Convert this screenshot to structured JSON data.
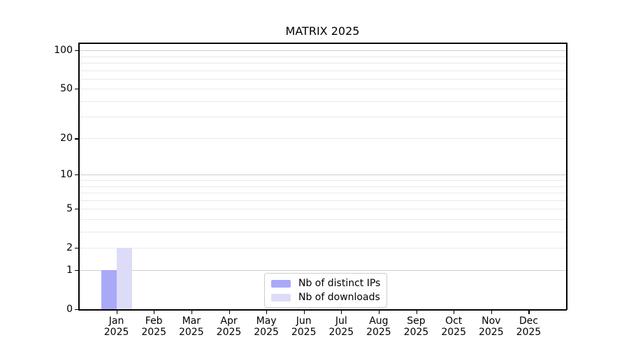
{
  "chart_data": {
    "type": "bar",
    "title": "MATRIX 2025",
    "categories": [
      "Jan 2025",
      "Feb 2025",
      "Mar 2025",
      "Apr 2025",
      "May 2025",
      "Jun 2025",
      "Jul 2025",
      "Aug 2025",
      "Sep 2025",
      "Oct 2025",
      "Nov 2025",
      "Dec 2025"
    ],
    "series": [
      {
        "name": "Nb of distinct IPs",
        "color": "#a9a9f8",
        "values": [
          1,
          0,
          0,
          0,
          0,
          0,
          0,
          0,
          0,
          0,
          0,
          0
        ]
      },
      {
        "name": "Nb of downloads",
        "color": "#dddcf8",
        "values": [
          2,
          0,
          0,
          0,
          0,
          0,
          0,
          0,
          0,
          0,
          0,
          0
        ]
      }
    ],
    "xlabel": "",
    "ylabel": "",
    "y_scale": "log10(1+x)",
    "ylim": [
      0,
      114
    ],
    "y_tick_labels": [
      0,
      1,
      2,
      5,
      10,
      20,
      50,
      100
    ],
    "gridlines": {
      "major": [
        1,
        10,
        100
      ],
      "minor": [
        2,
        3,
        4,
        5,
        6,
        7,
        8,
        9,
        20,
        30,
        40,
        50,
        60,
        70,
        80,
        90
      ]
    },
    "legend": {
      "position": "lower center",
      "entries": [
        "Nb of distinct IPs",
        "Nb of downloads"
      ]
    },
    "colors": {
      "grid_major": "#cdcdcd",
      "grid_minor": "#e9e9e9",
      "axis": "#000000",
      "text": "#000000",
      "background": "#ffffff"
    }
  }
}
